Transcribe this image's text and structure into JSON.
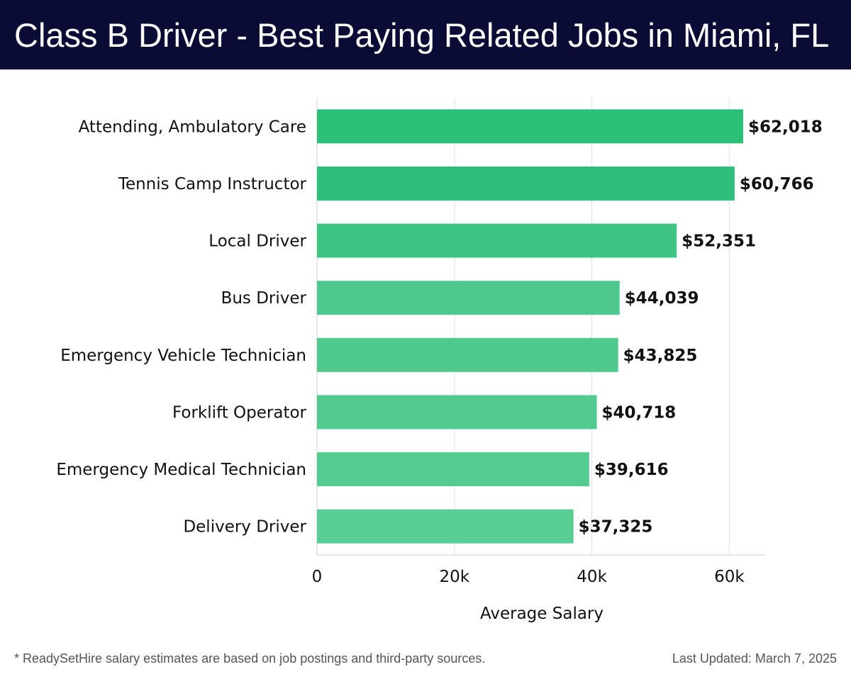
{
  "header": {
    "title": "Class B Driver - Best Paying Related Jobs in Miami, FL"
  },
  "chart_data": {
    "type": "bar",
    "orientation": "horizontal",
    "categories": [
      "Attending, Ambulatory Care",
      "Tennis Camp Instructor",
      "Local Driver",
      "Bus Driver",
      "Emergency Vehicle Technician",
      "Forklift Operator",
      "Emergency Medical Technician",
      "Delivery Driver"
    ],
    "values": [
      62018,
      60766,
      52351,
      44039,
      43825,
      40718,
      39616,
      37325
    ],
    "value_labels": [
      "$62,018",
      "$60,766",
      "$52,351",
      "$44,039",
      "$43,825",
      "$40,718",
      "$39,616",
      "$37,325"
    ],
    "bar_colors": [
      "#2bbf77",
      "#2ec07a",
      "#3ec583",
      "#4ec88c",
      "#4fc98d",
      "#52ca8f",
      "#54cb91",
      "#58cd94"
    ],
    "xlabel": "Average Salary",
    "ylabel": "",
    "xlim": [
      0,
      65000
    ],
    "xticks": [
      0,
      20000,
      40000,
      60000
    ],
    "xtick_labels": [
      "0",
      "20k",
      "40k",
      "60k"
    ],
    "grid": true,
    "grid_color": "#e0e0e0"
  },
  "footer": {
    "note": "* ReadySetHire salary estimates are based on job postings and third-party sources.",
    "updated": "Last Updated: March 7, 2025"
  },
  "colors": {
    "header_bg": "#0b0c35",
    "header_text": "#ffffff",
    "footer_text": "#555555"
  }
}
